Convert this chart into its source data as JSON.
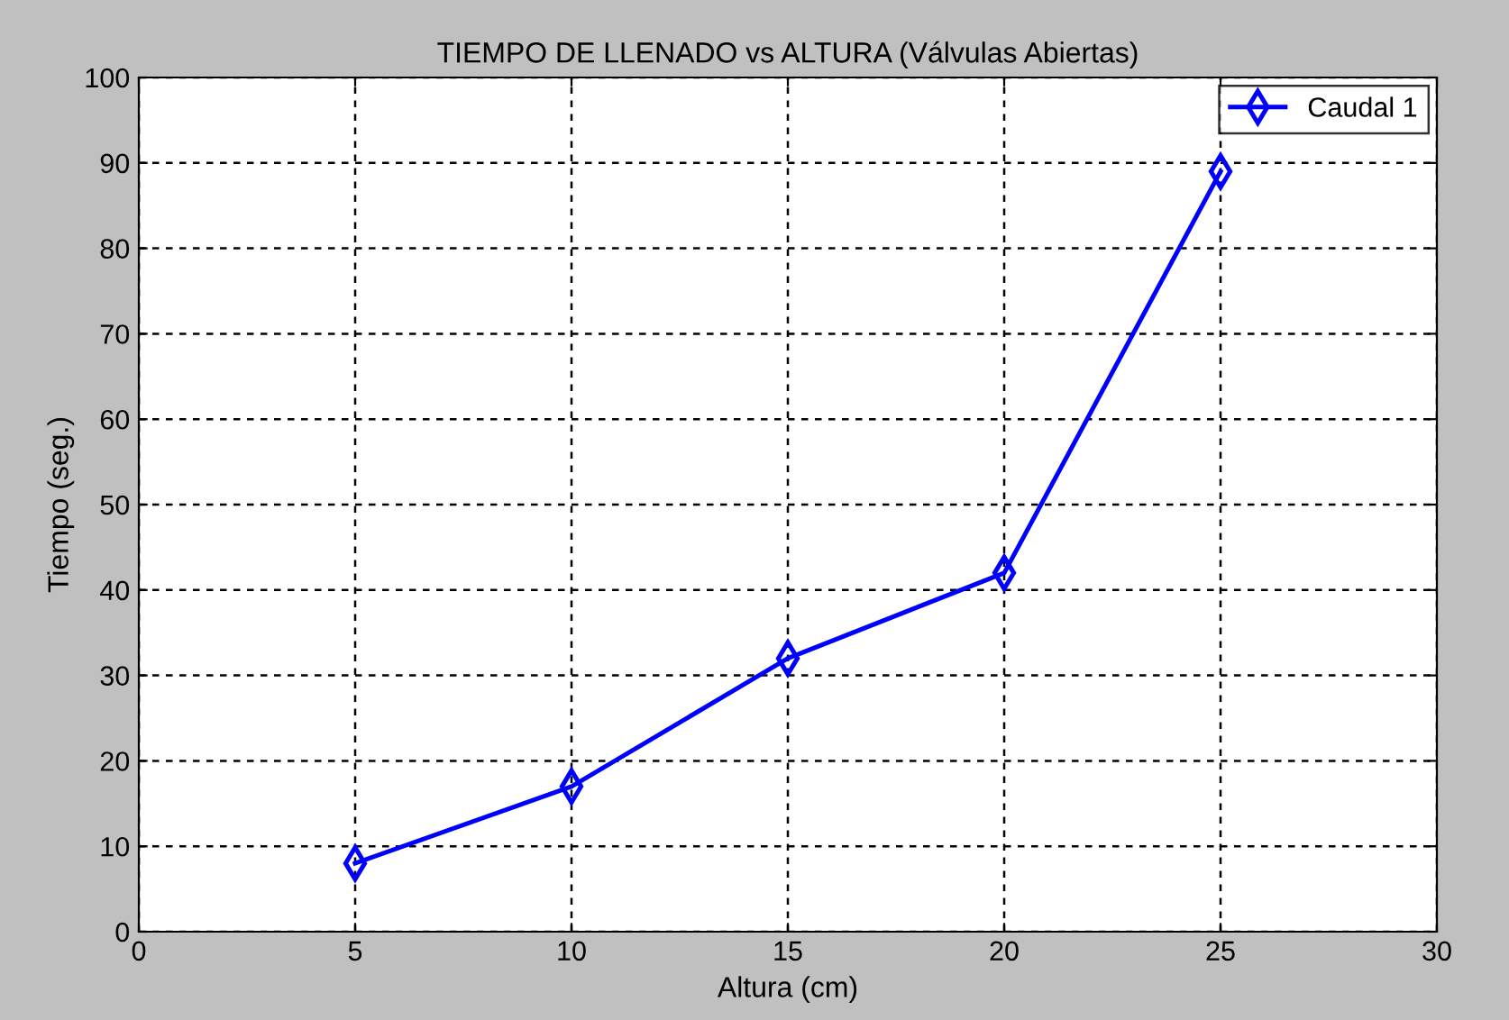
{
  "chart_data": {
    "type": "line",
    "title": "TIEMPO DE LLENADO vs ALTURA (Válvulas Abiertas)",
    "xlabel": "Altura (cm)",
    "ylabel": "Tiempo (seg.)",
    "x": [
      5,
      10,
      15,
      20,
      25
    ],
    "series": [
      {
        "name": "Caudal 1",
        "color": "#0000ff",
        "values": [
          8,
          17,
          32,
          42,
          89
        ]
      }
    ],
    "xlim": [
      0,
      30
    ],
    "xticks": [
      0,
      5,
      10,
      15,
      20,
      25,
      30
    ],
    "ylim": [
      0,
      100
    ],
    "yticks": [
      0,
      10,
      20,
      30,
      40,
      50,
      60,
      70,
      80,
      90,
      100
    ],
    "grid": true,
    "legend": "top right",
    "marker": "diamond",
    "line_style": "solid"
  }
}
